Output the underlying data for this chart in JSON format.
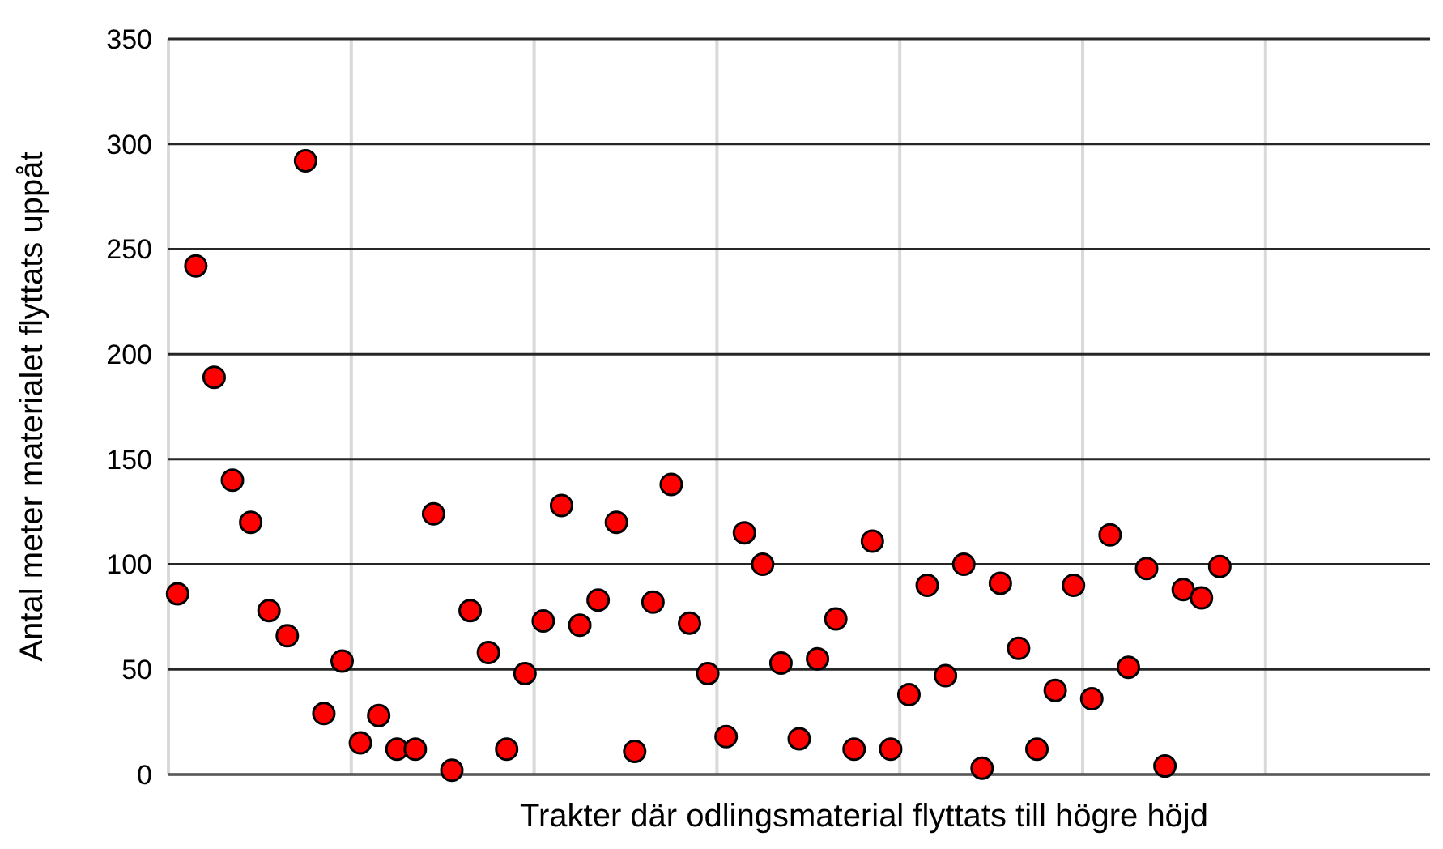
{
  "chart_data": {
    "type": "scatter",
    "xlabel": "Trakter där odlingsmaterial flyttats till högre höjd",
    "ylabel": "Antal meter materialet flyttats uppåt",
    "categories": [
      null,
      null,
      null,
      null,
      null,
      null,
      null,
      null,
      null,
      null,
      null,
      null,
      null,
      null,
      null,
      null,
      null,
      null,
      null,
      null,
      null,
      null,
      null,
      null,
      null,
      null,
      null,
      null,
      null,
      null,
      null,
      null,
      null,
      null,
      null,
      null,
      null,
      null,
      null,
      null,
      null,
      null,
      null,
      null,
      null,
      null,
      null,
      null,
      null,
      null,
      null,
      null,
      null,
      null,
      null,
      null,
      null,
      null,
      null,
      null,
      null,
      null,
      null,
      null,
      null,
      null,
      null,
      null,
      null
    ],
    "values": [
      86,
      242,
      189,
      140,
      120,
      78,
      66,
      292,
      29,
      54,
      15,
      28,
      12,
      12,
      124,
      2,
      78,
      58,
      12,
      48,
      73,
      128,
      71,
      83,
      120,
      11,
      82,
      138,
      72,
      48,
      18,
      115,
      100,
      53,
      17,
      55,
      74,
      12,
      111,
      12,
      38,
      90,
      47,
      100,
      3,
      91,
      60,
      12,
      40,
      90,
      36,
      114,
      51,
      98,
      4,
      88,
      84,
      99,
      null,
      null,
      null,
      null,
      null,
      null,
      null,
      null,
      null,
      null,
      null
    ],
    "color": "#ff0000",
    "marker": "circle",
    "ylim": [
      0,
      350
    ],
    "yticks": [
      0,
      50,
      100,
      150,
      200,
      250,
      300,
      350
    ],
    "grid": true
  }
}
